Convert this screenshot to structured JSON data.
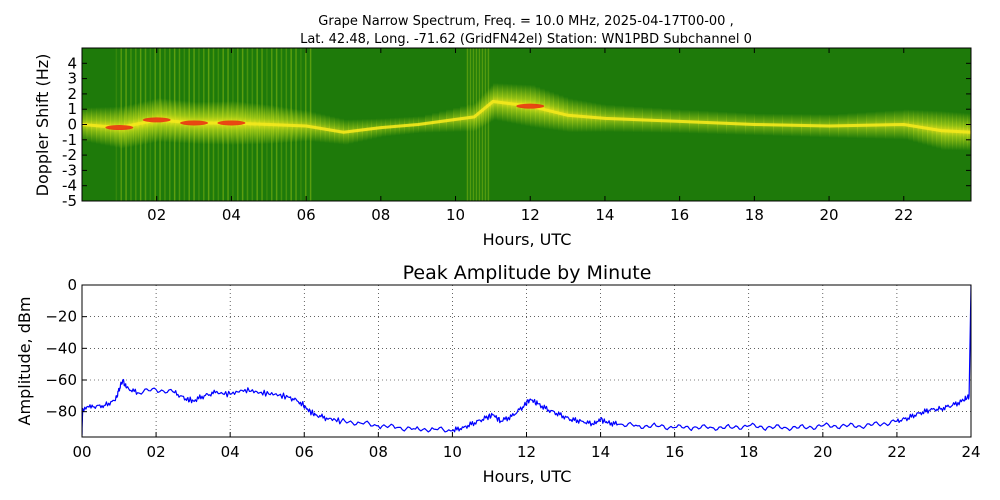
{
  "chart_data": [
    {
      "type": "heatmap",
      "title_line1": "Grape Narrow Spectrum, Freq. = 10.0 MHz, 2025-04-17T00-00 ,",
      "title_line2": "Lat.  42.48, Long. -71.62 (GridFN42el) Station: WN1PBD Subchannel 0",
      "xlabel": "Hours, UTC",
      "ylabel": "Doppler Shift (Hz)",
      "xlim": [
        0,
        23.8
      ],
      "ylim": [
        -5,
        5
      ],
      "x_ticks": [
        "02",
        "04",
        "06",
        "08",
        "10",
        "12",
        "14",
        "16",
        "18",
        "20",
        "22"
      ],
      "x_tick_values": [
        2,
        4,
        6,
        8,
        10,
        12,
        14,
        16,
        18,
        20,
        22
      ],
      "y_ticks": [
        "4",
        "3",
        "2",
        "1",
        "0",
        "-1",
        "-2",
        "-3",
        "-4",
        "-5"
      ],
      "y_tick_values": [
        4,
        3,
        2,
        1,
        0,
        -1,
        -2,
        -3,
        -4,
        -5
      ],
      "colors": {
        "background": "#1e7a0a",
        "low": "#3a9a10",
        "mid": "#b8d818",
        "high": "#f2e81c",
        "peak": "#e82a10"
      },
      "carrier_trace": [
        {
          "x": 0.0,
          "y": 0.0,
          "intensity": 0.7
        },
        {
          "x": 1.0,
          "y": -0.2,
          "intensity": 0.95
        },
        {
          "x": 2.0,
          "y": 0.3,
          "intensity": 1.0
        },
        {
          "x": 3.0,
          "y": 0.1,
          "intensity": 0.95
        },
        {
          "x": 4.0,
          "y": 0.1,
          "intensity": 1.0
        },
        {
          "x": 5.0,
          "y": 0.0,
          "intensity": 0.85
        },
        {
          "x": 6.0,
          "y": -0.1,
          "intensity": 0.6
        },
        {
          "x": 7.0,
          "y": -0.5,
          "intensity": 0.45
        },
        {
          "x": 8.0,
          "y": -0.2,
          "intensity": 0.25
        },
        {
          "x": 9.0,
          "y": 0.0,
          "intensity": 0.2
        },
        {
          "x": 10.5,
          "y": 0.5,
          "intensity": 0.55
        },
        {
          "x": 11.0,
          "y": 1.5,
          "intensity": 0.8
        },
        {
          "x": 12.0,
          "y": 1.2,
          "intensity": 0.95
        },
        {
          "x": 13.0,
          "y": 0.6,
          "intensity": 0.7
        },
        {
          "x": 14.0,
          "y": 0.4,
          "intensity": 0.5
        },
        {
          "x": 16.0,
          "y": 0.2,
          "intensity": 0.4
        },
        {
          "x": 18.0,
          "y": 0.0,
          "intensity": 0.35
        },
        {
          "x": 20.0,
          "y": -0.1,
          "intensity": 0.4
        },
        {
          "x": 22.0,
          "y": 0.0,
          "intensity": 0.6
        },
        {
          "x": 23.0,
          "y": -0.4,
          "intensity": 0.85
        },
        {
          "x": 23.8,
          "y": -0.5,
          "intensity": 0.8
        }
      ]
    },
    {
      "type": "line",
      "title": "Peak Amplitude by Minute",
      "xlabel": "Hours, UTC",
      "ylabel": "Amplitude, dBm",
      "xlim": [
        0,
        24
      ],
      "ylim": [
        -96,
        0
      ],
      "grid": true,
      "x_ticks": [
        "00",
        "02",
        "04",
        "06",
        "08",
        "10",
        "12",
        "14",
        "16",
        "18",
        "20",
        "22",
        "24"
      ],
      "x_tick_values": [
        0,
        2,
        4,
        6,
        8,
        10,
        12,
        14,
        16,
        18,
        20,
        22,
        24
      ],
      "y_ticks": [
        "0",
        "−20",
        "−40",
        "−60",
        "−80"
      ],
      "y_tick_values": [
        0,
        -20,
        -40,
        -60,
        -80
      ],
      "line_color": "#0000ff",
      "x": [
        0.0,
        0.02,
        0.3,
        0.6,
        0.9,
        1.0,
        1.1,
        1.2,
        1.5,
        2.0,
        2.5,
        2.8,
        3.0,
        3.3,
        3.6,
        4.0,
        4.4,
        4.8,
        5.2,
        5.6,
        5.9,
        6.1,
        6.3,
        6.6,
        7.0,
        7.5,
        8.0,
        8.5,
        9.0,
        9.5,
        10.0,
        10.3,
        10.6,
        10.9,
        11.1,
        11.3,
        11.6,
        11.9,
        12.1,
        12.3,
        12.6,
        12.9,
        13.2,
        13.5,
        13.8,
        14.0,
        14.2,
        14.5,
        15.0,
        15.5,
        16.0,
        16.5,
        17.0,
        17.5,
        18.0,
        18.5,
        19.0,
        19.5,
        20.0,
        20.5,
        21.0,
        21.5,
        22.0,
        22.3,
        22.6,
        22.9,
        23.2,
        23.5,
        23.8,
        23.95,
        24.0
      ],
      "y": [
        -95,
        -78,
        -77,
        -76,
        -73,
        -66,
        -60,
        -65,
        -68,
        -66,
        -68,
        -72,
        -73,
        -70,
        -68,
        -69,
        -66,
        -68,
        -69,
        -71,
        -74,
        -79,
        -82,
        -84,
        -86,
        -87,
        -89,
        -90,
        -91,
        -91,
        -92,
        -90,
        -87,
        -84,
        -82,
        -86,
        -83,
        -77,
        -72,
        -75,
        -79,
        -82,
        -85,
        -86,
        -88,
        -85,
        -87,
        -88,
        -89,
        -89,
        -90,
        -90,
        -90,
        -90,
        -89,
        -90,
        -90,
        -90,
        -89,
        -89,
        -89,
        -88,
        -86,
        -84,
        -81,
        -79,
        -78,
        -76,
        -73,
        -70,
        0
      ]
    }
  ]
}
